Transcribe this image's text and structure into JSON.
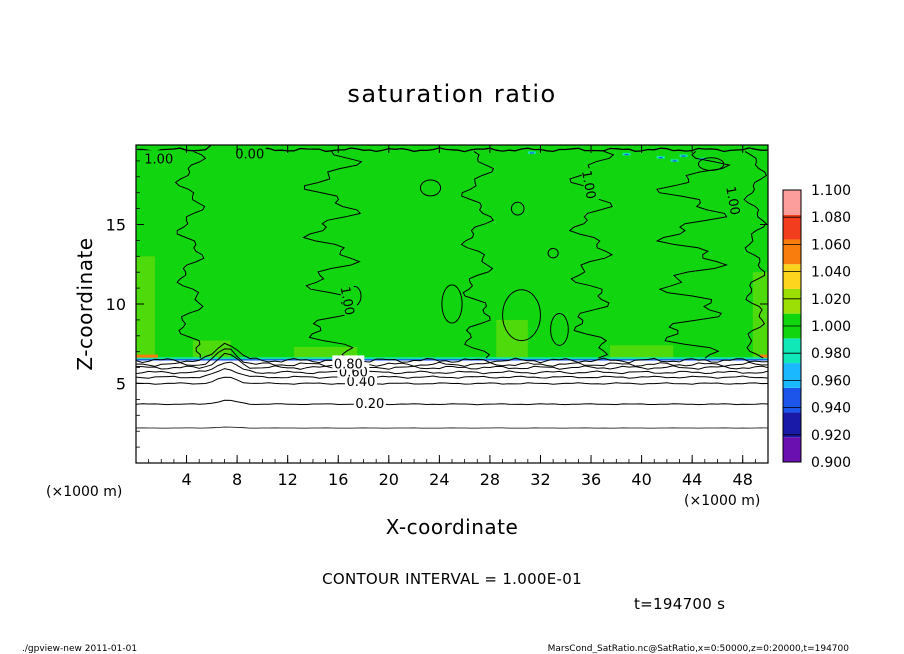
{
  "chart_data": {
    "type": "heatmap",
    "title": "saturation ratio",
    "xlabel": "X-coordinate",
    "ylabel": "Z-coordinate",
    "x_unit": "(×1000 m)",
    "y_unit": "(×1000 m)",
    "xlim": [
      0,
      50
    ],
    "ylim": [
      0,
      20
    ],
    "x_ticks": [
      4,
      8,
      12,
      16,
      20,
      24,
      28,
      32,
      36,
      40,
      44,
      48
    ],
    "y_ticks": [
      5,
      10,
      15
    ],
    "colorbar": {
      "levels": [
        0.9,
        0.92,
        0.94,
        0.96,
        0.98,
        1.0,
        1.02,
        1.04,
        1.06,
        1.08,
        1.1
      ],
      "labels": [
        "0.900",
        "0.920",
        "0.940",
        "0.960",
        "0.980",
        "1.000",
        "1.020",
        "1.040",
        "1.060",
        "1.080",
        "1.100"
      ],
      "colors": [
        "#6a0fb0",
        "#1a1aa8",
        "#1c55ea",
        "#19b8ff",
        "#10e8b8",
        "#11d60f",
        "#9cdf06",
        "#fdd41e",
        "#f97d0d",
        "#f23d1f",
        "#fb9e9c"
      ]
    },
    "field": {
      "saturated_region": {
        "z_min": 6.5,
        "z_max": 20,
        "value": 1.0
      },
      "dry_layer": {
        "z_min": 0,
        "z_max": 6.5
      }
    },
    "contour_labels": [
      {
        "text": "0.20",
        "x": 18.5,
        "z": 3.7
      },
      {
        "text": "0.40",
        "x": 17.8,
        "z": 5.1
      },
      {
        "text": "0.60",
        "x": 17.2,
        "z": 5.7
      },
      {
        "text": "0.80",
        "x": 16.8,
        "z": 6.2
      },
      {
        "text": "1.00",
        "x": 16.7,
        "z": 10.2
      },
      {
        "text": "1.00",
        "x": 35.8,
        "z": 17.5
      },
      {
        "text": "1.00",
        "x": 47.2,
        "z": 16.5
      },
      {
        "text": "1.00",
        "x": 1.8,
        "z": 19.1
      },
      {
        "text": "0.00",
        "x": 9.0,
        "z": 19.4
      }
    ],
    "dry_contours": [
      {
        "level": 0.2,
        "z": 3.7
      },
      {
        "level": 0.4,
        "z": 5.0
      },
      {
        "level": 0.5,
        "z": 5.4
      },
      {
        "level": 0.6,
        "z": 5.7
      },
      {
        "level": 0.7,
        "z": 6.0
      },
      {
        "level": 0.8,
        "z": 6.2
      },
      {
        "level": 0.9,
        "z": 6.45
      }
    ],
    "low_contour_z": 2.2,
    "legend_placement": "right"
  },
  "annotations": {
    "contour_interval": "CONTOUR INTERVAL = 1.000E-01",
    "time": "t=194700 s"
  },
  "footer": {
    "left": "./gpview-new  2011-01-01",
    "right": "MarsCond_SatRatio.nc@SatRatio,x=0:50000,z=0:20000,t=194700"
  }
}
